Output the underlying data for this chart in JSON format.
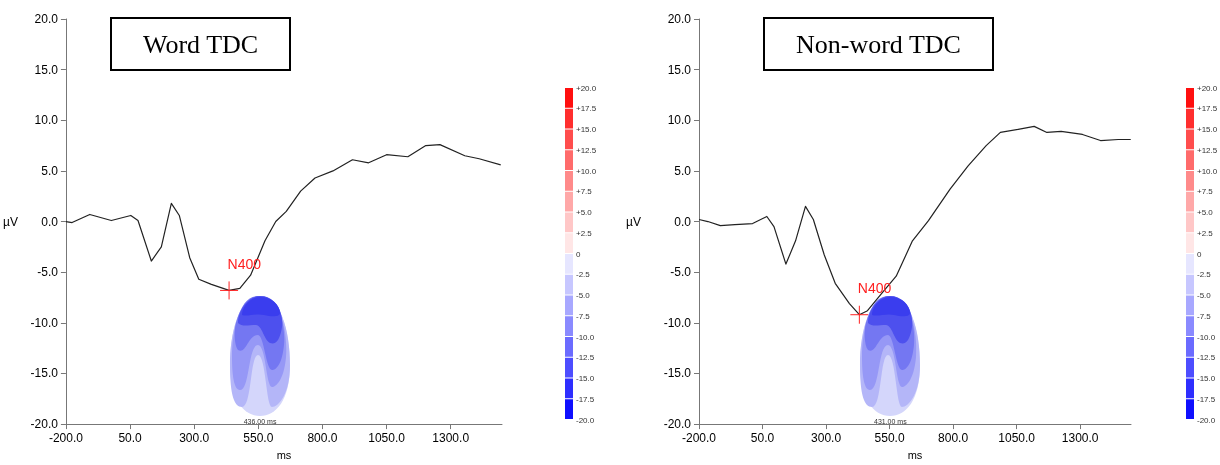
{
  "chart_data": [
    {
      "type": "line",
      "title": "Word TDC",
      "xlabel": "ms",
      "ylabel": "µV",
      "x": [
        -200,
        -176,
        -107,
        -23,
        53,
        81,
        133,
        172,
        211,
        242,
        283,
        318,
        367,
        436,
        478,
        520,
        576,
        618,
        659,
        715,
        771,
        841,
        917,
        980,
        1050,
        1133,
        1203,
        1258,
        1355,
        1411,
        1495
      ],
      "series": [
        {
          "color": "#222222",
          "values": [
            0,
            -0.1,
            0.7,
            0.1,
            0.6,
            0.1,
            -3.9,
            -2.5,
            1.8,
            0.6,
            -3.6,
            -5.7,
            -6.2,
            -6.8,
            -6.6,
            -5.3,
            -1.9,
            0,
            1.0,
            3.0,
            4.3,
            5.0,
            6.1,
            5.8,
            6.6,
            6.4,
            7.5,
            7.6,
            6.5,
            6.2,
            5.6
          ]
        }
      ],
      "xlim": [
        -200,
        1500
      ],
      "xticks": [
        {
          "value": -200,
          "label": "-200.0"
        },
        {
          "value": 50,
          "label": "50.0"
        },
        {
          "value": 300,
          "label": "300.0"
        },
        {
          "value": 550,
          "label": "550.0"
        },
        {
          "value": 800,
          "label": "800.0"
        },
        {
          "value": 1050,
          "label": "1050.0"
        },
        {
          "value": 1300,
          "label": "1300.0"
        }
      ],
      "ylim": [
        -20,
        20
      ],
      "yticks": [
        {
          "value": -20,
          "label": "-20.0"
        },
        {
          "value": -15,
          "label": "-15.0"
        },
        {
          "value": -10,
          "label": "-10.0"
        },
        {
          "value": -5,
          "label": "-5.0"
        },
        {
          "value": 0,
          "label": "0.0"
        },
        {
          "value": 5,
          "label": "5.0"
        },
        {
          "value": 10,
          "label": "10.0"
        },
        {
          "value": 15,
          "label": "15.0"
        },
        {
          "value": 20,
          "label": "20.0"
        }
      ],
      "annotations": [
        {
          "text": "N400",
          "x": 436,
          "y": -6.8
        },
        "436.00 ms"
      ],
      "clim": [
        -20,
        20
      ],
      "cticks": [
        {
          "value": 20,
          "label": "+20.0"
        },
        {
          "value": 17.5,
          "label": "+17.5"
        },
        {
          "value": 15,
          "label": "+15.0"
        },
        {
          "value": 12.5,
          "label": "+12.5"
        },
        {
          "value": 10,
          "label": "+10.0"
        },
        {
          "value": 7.5,
          "label": "+7.5"
        },
        {
          "value": 5,
          "label": "+5.0"
        },
        {
          "value": 2.5,
          "label": "+2.5"
        },
        {
          "value": 0,
          "label": "0"
        },
        {
          "value": -2.5,
          "label": "-2.5"
        },
        {
          "value": -5,
          "label": "-5.0"
        },
        {
          "value": -7.5,
          "label": "-7.5"
        },
        {
          "value": -10,
          "label": "-10.0"
        },
        {
          "value": -12.5,
          "label": "-12.5"
        },
        {
          "value": -15,
          "label": "-15.0"
        },
        {
          "value": -17.5,
          "label": "-17.5"
        },
        {
          "value": -20,
          "label": "-20.0"
        }
      ],
      "grid": false
    },
    {
      "type": "line",
      "title": "Non-word TDC",
      "xlabel": "ms",
      "ylabel": "µV",
      "x": [
        -200,
        -165,
        -116,
        -59,
        11,
        67,
        95,
        142,
        180,
        219,
        250,
        293,
        336,
        392,
        431,
        463,
        519,
        576,
        640,
        703,
        788,
        859,
        930,
        986,
        1056,
        1119,
        1169,
        1225,
        1309,
        1380,
        1450,
        1499
      ],
      "series": [
        {
          "color": "#222222",
          "values": [
            0.2,
            0,
            -0.4,
            -0.3,
            -0.2,
            0.5,
            -0.5,
            -4.2,
            -1.9,
            1.5,
            0.2,
            -3.3,
            -6.1,
            -8.1,
            -9.2,
            -8.8,
            -7.1,
            -5.4,
            -1.9,
            0.1,
            3.2,
            5.5,
            7.5,
            8.8,
            9.1,
            9.4,
            8.8,
            8.9,
            8.6,
            8.0,
            8.1,
            8.1
          ]
        }
      ],
      "xlim": [
        -200,
        1500
      ],
      "xticks": [
        {
          "value": -200,
          "label": "-200.0"
        },
        {
          "value": 50,
          "label": "50.0"
        },
        {
          "value": 300,
          "label": "300.0"
        },
        {
          "value": 550,
          "label": "550.0"
        },
        {
          "value": 800,
          "label": "800.0"
        },
        {
          "value": 1050,
          "label": "1050.0"
        },
        {
          "value": 1300,
          "label": "1300.0"
        }
      ],
      "ylim": [
        -20,
        20
      ],
      "yticks": [
        {
          "value": -20,
          "label": "-20.0"
        },
        {
          "value": -15,
          "label": "-15.0"
        },
        {
          "value": -10,
          "label": "-10.0"
        },
        {
          "value": -5,
          "label": "-5.0"
        },
        {
          "value": 0,
          "label": "0.0"
        },
        {
          "value": 5,
          "label": "5.0"
        },
        {
          "value": 10,
          "label": "10.0"
        },
        {
          "value": 15,
          "label": "15.0"
        },
        {
          "value": 20,
          "label": "20.0"
        }
      ],
      "annotations": [
        {
          "text": "N400",
          "x": 431,
          "y": -9.2
        },
        "431.00 ms"
      ],
      "clim": [
        -20,
        20
      ],
      "cticks": [
        {
          "value": 20,
          "label": "+20.0"
        },
        {
          "value": 17.5,
          "label": "+17.5"
        },
        {
          "value": 15,
          "label": "+15.0"
        },
        {
          "value": 12.5,
          "label": "+12.5"
        },
        {
          "value": 10,
          "label": "+10.0"
        },
        {
          "value": 7.5,
          "label": "+7.5"
        },
        {
          "value": 5,
          "label": "+5.0"
        },
        {
          "value": 2.5,
          "label": "+2.5"
        },
        {
          "value": 0,
          "label": "0"
        },
        {
          "value": -2.5,
          "label": "-2.5"
        },
        {
          "value": -5,
          "label": "-5.0"
        },
        {
          "value": -7.5,
          "label": "-7.5"
        },
        {
          "value": -10,
          "label": "-10.0"
        },
        {
          "value": -12.5,
          "label": "-12.5"
        },
        {
          "value": -15,
          "label": "-15.0"
        },
        {
          "value": -17.5,
          "label": "-17.5"
        },
        {
          "value": -20,
          "label": "-20.0"
        }
      ],
      "grid": false
    }
  ]
}
